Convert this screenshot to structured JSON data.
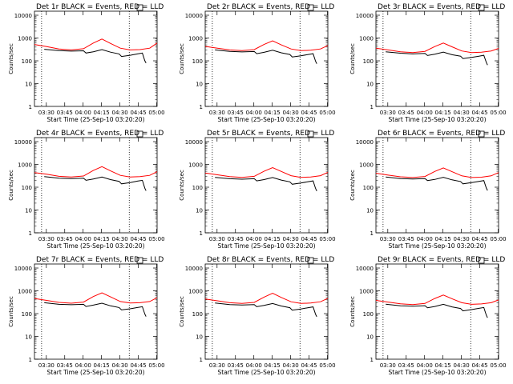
{
  "figure": {
    "colors": {
      "events": "#000000",
      "lld": "#ff0000",
      "axis": "#000000",
      "background": "#ffffff"
    },
    "y_axis_label": "Counts/sec",
    "x_axis_label": "Start Time (25-Sep-10 03:20:20)",
    "y_ticks": [
      "1",
      "10",
      "100",
      "1000",
      "10000"
    ],
    "y_scale": "log",
    "ylim": [
      1,
      15000
    ],
    "xlim_minutes_after_0320": [
      0,
      100
    ],
    "vertical_markers_minutes_after_0320": [
      5.8,
      77.3
    ]
  },
  "chart_data": [
    {
      "type": "line",
      "title": "Det 1r BLACK = Events, RED = LLD",
      "x_tick_labels": [
        "03:30",
        "03:45",
        "04:00",
        "04:15",
        "04:30",
        "04:45",
        "05:00"
      ],
      "x_ticks_minutes_after_0320": [
        9.67,
        24.67,
        39.67,
        54.67,
        69.67,
        84.67,
        99.67
      ],
      "series": [
        {
          "role": "events",
          "x": [
            8,
            20,
            30,
            40,
            42,
            48,
            55,
            62,
            69,
            71,
            78,
            84,
            88,
            90,
            91
          ],
          "y": [
            320,
            280,
            265,
            275,
            220,
            250,
            310,
            240,
            200,
            155,
            175,
            200,
            220,
            100,
            80
          ]
        },
        {
          "role": "lld",
          "x": [
            0,
            10,
            20,
            30,
            40,
            48,
            55,
            62,
            70,
            78,
            86,
            94,
            100
          ],
          "y": [
            520,
            420,
            330,
            300,
            340,
            600,
            900,
            580,
            360,
            300,
            310,
            360,
            600
          ]
        }
      ]
    },
    {
      "type": "line",
      "title": "Det 2r BLACK = Events, RED = LLD",
      "x_tick_labels": [
        "03:30",
        "03:45",
        "04:00",
        "04:15",
        "04:30",
        "04:45",
        "05:00"
      ],
      "x_ticks_minutes_after_0320": [
        9.67,
        24.67,
        39.67,
        54.67,
        69.67,
        84.67,
        99.67
      ],
      "series": [
        {
          "role": "events",
          "x": [
            8,
            20,
            30,
            40,
            42,
            48,
            55,
            62,
            69,
            71,
            78,
            84,
            88,
            90,
            91
          ],
          "y": [
            300,
            260,
            245,
            255,
            205,
            235,
            290,
            225,
            190,
            148,
            165,
            190,
            205,
            95,
            75
          ]
        },
        {
          "role": "lld",
          "x": [
            0,
            10,
            20,
            30,
            40,
            48,
            55,
            62,
            70,
            78,
            86,
            94,
            100
          ],
          "y": [
            430,
            360,
            300,
            280,
            310,
            520,
            750,
            500,
            330,
            280,
            290,
            330,
            470
          ]
        }
      ]
    },
    {
      "type": "line",
      "title": "Det 3r BLACK = Events, RED = LLD",
      "x_tick_labels": [
        "03:30",
        "03:45",
        "04:00",
        "04:15",
        "04:30",
        "04:45",
        "05:00"
      ],
      "x_ticks_minutes_after_0320": [
        9.67,
        24.67,
        39.67,
        54.67,
        69.67,
        84.67,
        99.67
      ],
      "series": [
        {
          "role": "events",
          "x": [
            8,
            20,
            30,
            40,
            42,
            48,
            55,
            62,
            69,
            71,
            78,
            84,
            88,
            90,
            91
          ],
          "y": [
            250,
            215,
            200,
            210,
            170,
            195,
            240,
            185,
            160,
            125,
            140,
            160,
            175,
            85,
            65
          ]
        },
        {
          "role": "lld",
          "x": [
            0,
            10,
            20,
            30,
            40,
            48,
            55,
            62,
            70,
            78,
            86,
            94,
            100
          ],
          "y": [
            360,
            300,
            250,
            230,
            260,
            420,
            600,
            410,
            270,
            230,
            240,
            270,
            350
          ]
        }
      ]
    },
    {
      "type": "line",
      "title": "Det 4r BLACK = Events, RED = LLD",
      "x_tick_labels": [
        "03:30",
        "03:45",
        "04:00",
        "04:15",
        "04:30",
        "04:45",
        "05:00"
      ],
      "x_ticks_minutes_after_0320": [
        9.67,
        24.67,
        39.67,
        54.67,
        69.67,
        84.67,
        99.67
      ],
      "series": [
        {
          "role": "events",
          "x": [
            8,
            20,
            30,
            40,
            42,
            48,
            55,
            62,
            69,
            71,
            78,
            84,
            88,
            90,
            91
          ],
          "y": [
            290,
            250,
            240,
            250,
            200,
            230,
            280,
            215,
            180,
            140,
            160,
            185,
            200,
            90,
            70
          ]
        },
        {
          "role": "lld",
          "x": [
            0,
            10,
            20,
            30,
            40,
            48,
            55,
            62,
            70,
            78,
            86,
            94,
            100
          ],
          "y": [
            440,
            370,
            300,
            280,
            310,
            540,
            800,
            520,
            330,
            280,
            290,
            330,
            480
          ]
        }
      ]
    },
    {
      "type": "line",
      "title": "Det 5r BLACK = Events, RED = LLD",
      "x_tick_labels": [
        "03:30",
        "03:45",
        "04:00",
        "04:15",
        "04:30",
        "04:45",
        "05:00"
      ],
      "x_ticks_minutes_after_0320": [
        9.67,
        24.67,
        39.67,
        54.67,
        69.67,
        84.67,
        99.67
      ],
      "series": [
        {
          "role": "events",
          "x": [
            8,
            20,
            30,
            40,
            42,
            48,
            55,
            62,
            69,
            71,
            78,
            84,
            88,
            90,
            91
          ],
          "y": [
            270,
            235,
            225,
            235,
            190,
            215,
            265,
            205,
            172,
            135,
            152,
            175,
            190,
            88,
            68
          ]
        },
        {
          "role": "lld",
          "x": [
            0,
            10,
            20,
            30,
            40,
            48,
            55,
            62,
            70,
            78,
            86,
            94,
            100
          ],
          "y": [
            420,
            350,
            290,
            270,
            300,
            500,
            720,
            490,
            320,
            270,
            280,
            320,
            450
          ]
        }
      ]
    },
    {
      "type": "line",
      "title": "Det 6r BLACK = Events, RED = LLD",
      "x_tick_labels": [
        "03:30",
        "03:45",
        "04:00",
        "04:15",
        "04:30",
        "04:45",
        "05:00"
      ],
      "x_ticks_minutes_after_0320": [
        9.67,
        24.67,
        39.67,
        54.67,
        69.67,
        84.67,
        99.67
      ],
      "series": [
        {
          "role": "events",
          "x": [
            8,
            20,
            30,
            40,
            42,
            48,
            55,
            62,
            69,
            71,
            78,
            84,
            88,
            90,
            91
          ],
          "y": [
            280,
            240,
            230,
            240,
            195,
            220,
            270,
            210,
            178,
            140,
            158,
            180,
            195,
            92,
            72
          ]
        },
        {
          "role": "lld",
          "x": [
            0,
            10,
            20,
            30,
            40,
            48,
            55,
            62,
            70,
            78,
            86,
            94,
            100
          ],
          "y": [
            410,
            340,
            285,
            265,
            295,
            490,
            700,
            480,
            315,
            265,
            275,
            315,
            440
          ]
        }
      ]
    },
    {
      "type": "line",
      "title": "Det 7r BLACK = Events, RED = LLD",
      "x_tick_labels": [
        "03:30",
        "03:45",
        "04:00",
        "04:15",
        "04:30",
        "04:45",
        "05:00"
      ],
      "x_ticks_minutes_after_0320": [
        9.67,
        24.67,
        39.67,
        54.67,
        69.67,
        84.67,
        99.67
      ],
      "series": [
        {
          "role": "events",
          "x": [
            8,
            20,
            30,
            40,
            42,
            48,
            55,
            62,
            69,
            71,
            78,
            84,
            88,
            90,
            91
          ],
          "y": [
            300,
            255,
            245,
            255,
            205,
            235,
            285,
            220,
            185,
            145,
            162,
            185,
            200,
            95,
            75
          ]
        },
        {
          "role": "lld",
          "x": [
            0,
            10,
            20,
            30,
            40,
            48,
            55,
            62,
            70,
            78,
            86,
            94,
            100
          ],
          "y": [
            460,
            380,
            310,
            285,
            320,
            560,
            820,
            540,
            340,
            290,
            300,
            340,
            500
          ]
        }
      ]
    },
    {
      "type": "line",
      "title": "Det 8r BLACK = Events, RED = LLD",
      "x_tick_labels": [
        "03:30",
        "03:45",
        "04:00",
        "04:15",
        "04:30",
        "04:45",
        "05:00"
      ],
      "x_ticks_minutes_after_0320": [
        9.67,
        24.67,
        39.67,
        54.67,
        69.67,
        84.67,
        99.67
      ],
      "series": [
        {
          "role": "events",
          "x": [
            8,
            20,
            30,
            40,
            42,
            48,
            55,
            62,
            69,
            71,
            78,
            84,
            88,
            90,
            91
          ],
          "y": [
            290,
            250,
            240,
            250,
            200,
            228,
            278,
            215,
            182,
            142,
            160,
            182,
            198,
            93,
            73
          ]
        },
        {
          "role": "lld",
          "x": [
            0,
            10,
            20,
            30,
            40,
            48,
            55,
            62,
            70,
            78,
            86,
            94,
            100
          ],
          "y": [
            440,
            365,
            300,
            280,
            310,
            530,
            780,
            510,
            330,
            280,
            290,
            330,
            470
          ]
        }
      ]
    },
    {
      "type": "line",
      "title": "Det 9r BLACK = Events, RED = LLD",
      "x_tick_labels": [
        "03:30",
        "03:45",
        "04:00",
        "04:15",
        "04:30",
        "04:45",
        "05:00"
      ],
      "x_ticks_minutes_after_0320": [
        9.67,
        24.67,
        39.67,
        54.67,
        69.67,
        84.67,
        99.67
      ],
      "series": [
        {
          "role": "events",
          "x": [
            8,
            20,
            30,
            40,
            42,
            48,
            55,
            62,
            69,
            71,
            78,
            84,
            88,
            90,
            91
          ],
          "y": [
            260,
            220,
            212,
            222,
            180,
            205,
            255,
            198,
            168,
            132,
            150,
            170,
            185,
            85,
            66
          ]
        },
        {
          "role": "lld",
          "x": [
            0,
            10,
            20,
            30,
            40,
            48,
            55,
            62,
            70,
            78,
            86,
            94,
            100
          ],
          "y": [
            380,
            320,
            270,
            250,
            280,
            460,
            650,
            450,
            300,
            255,
            265,
            300,
            400
          ]
        }
      ]
    }
  ]
}
